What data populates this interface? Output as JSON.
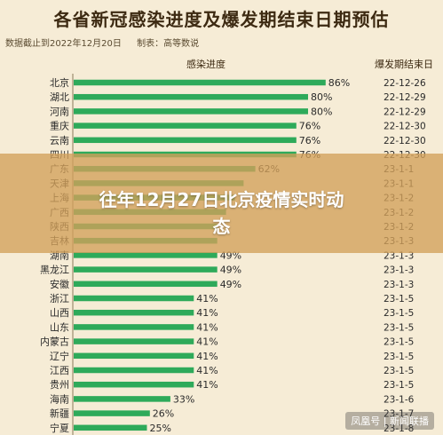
{
  "chart_data": {
    "type": "bar",
    "orientation": "horizontal",
    "title": "各省新冠感染进度及爆发期结束日期预估",
    "source_note": "数据截止到2022年12月20日",
    "producer_note": "制表：高等数说",
    "value_column_header": "感染进度",
    "date_column_header": "爆发期结束日",
    "categories": [
      "北京",
      "湖北",
      "河南",
      "重庆",
      "云南",
      "四川",
      "广东",
      "天津",
      "上海",
      "广西",
      "陕西",
      "吉林",
      "湖南",
      "黑龙江",
      "安徽",
      "浙江",
      "山西",
      "山东",
      "内蒙古",
      "辽宁",
      "江西",
      "贵州",
      "海南",
      "新疆",
      "宁夏"
    ],
    "values": [
      86,
      80,
      80,
      76,
      76,
      76,
      62,
      58,
      55,
      52,
      49,
      49,
      49,
      49,
      49,
      41,
      41,
      41,
      41,
      41,
      41,
      41,
      33,
      26,
      25
    ],
    "value_labels": [
      "86%",
      "80%",
      "80%",
      "76%",
      "76%",
      "76%",
      "62%",
      "",
      "",
      "",
      "",
      "",
      "49%",
      "49%",
      "49%",
      "41%",
      "41%",
      "41%",
      "41%",
      "41%",
      "41%",
      "41%",
      "33%",
      "26%",
      "25%"
    ],
    "end_dates": [
      "22-12-26",
      "22-12-29",
      "22-12-29",
      "22-12-30",
      "22-12-30",
      "22-12-30",
      "23-1-1",
      "23-1-1",
      "23-1-2",
      "23-1-2",
      "23-1-2",
      "23-1-3",
      "23-1-3",
      "23-1-3",
      "23-1-3",
      "23-1-5",
      "23-1-5",
      "23-1-5",
      "23-1-5",
      "23-1-5",
      "23-1-5",
      "23-1-5",
      "23-1-6",
      "23-1-7",
      "23-1-8"
    ],
    "bar_color": "#2eaa5a",
    "xlim": [
      0,
      100
    ]
  },
  "overlay": {
    "line1": "往年12月27日北京疫情实时动",
    "line2": "态"
  },
  "watermark": "凤凰号 | 新闻联播"
}
